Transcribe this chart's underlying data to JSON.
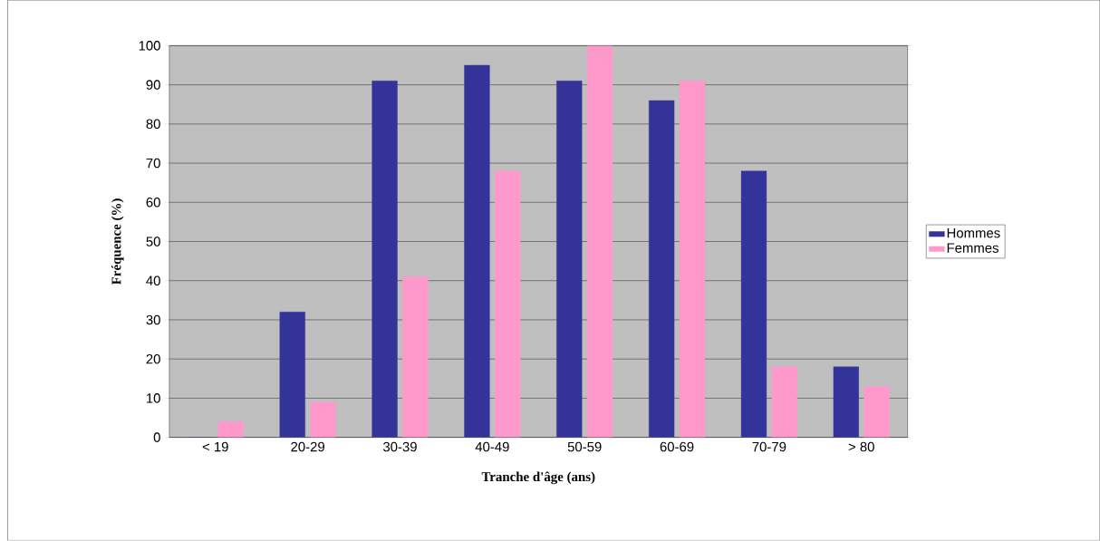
{
  "chart_data": {
    "type": "bar",
    "xlabel": "Tranche d'âge (ans)",
    "ylabel": "Fréquence (%)",
    "categories": [
      "< 19",
      "20-29",
      "30-39",
      "40-49",
      "50-59",
      "60-69",
      "70-79",
      "> 80"
    ],
    "series": [
      {
        "name": "Hommes",
        "color": "#333399",
        "values": [
          0,
          32,
          91,
          95,
          91,
          86,
          68,
          18
        ]
      },
      {
        "name": "Femmes",
        "color": "#ff99cc",
        "values": [
          4,
          9,
          41,
          68,
          100,
          91,
          18,
          13
        ]
      }
    ],
    "ylim": [
      0,
      100
    ],
    "yticks": [
      0,
      10,
      20,
      30,
      40,
      50,
      60,
      70,
      80,
      90,
      100
    ],
    "grid": "y",
    "legend": "right"
  }
}
